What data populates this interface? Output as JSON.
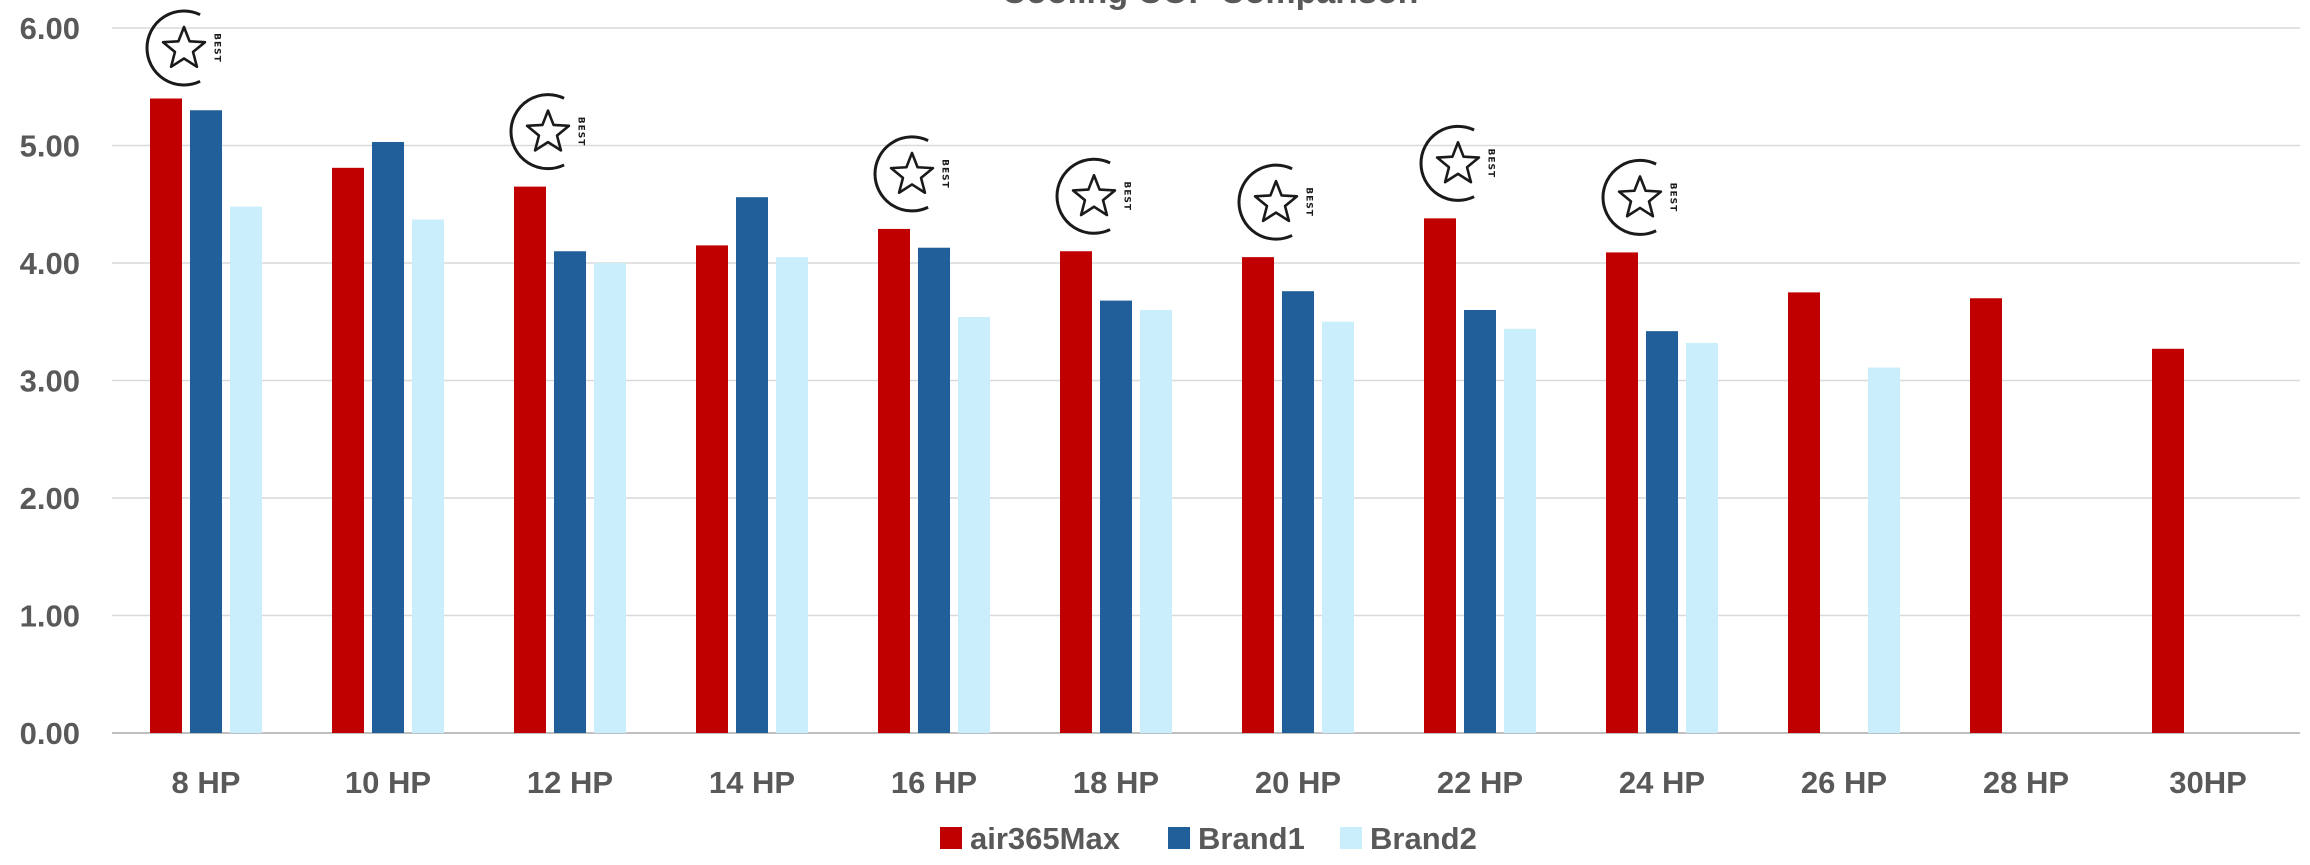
{
  "chart_data": {
    "type": "bar",
    "title": "Cooling COP Comparison",
    "xlabel": "",
    "ylabel": "",
    "ylim": [
      0,
      6
    ],
    "ytick_values": [
      0,
      1,
      2,
      3,
      4,
      5,
      6
    ],
    "ytick_labels": [
      "0.00",
      "1.00",
      "2.00",
      "3.00",
      "4.00",
      "5.00",
      "6.00"
    ],
    "categories": [
      "8 HP",
      "10 HP",
      "12 HP",
      "14 HP",
      "16 HP",
      "18 HP",
      "20 HP",
      "22 HP",
      "24 HP",
      "26 HP",
      "28 HP",
      "30HP"
    ],
    "series": [
      {
        "name": "air365Max",
        "color": "#c00000",
        "values": [
          5.4,
          4.81,
          4.65,
          4.15,
          4.29,
          4.1,
          4.05,
          4.38,
          4.09,
          3.75,
          3.7,
          3.27
        ]
      },
      {
        "name": "Brand1",
        "color": "#215f9a",
        "values": [
          5.3,
          5.03,
          4.1,
          4.56,
          4.13,
          3.68,
          3.76,
          3.6,
          3.42,
          null,
          null,
          null
        ]
      },
      {
        "name": "Brand2",
        "color": "#caeefb",
        "values": [
          4.48,
          4.37,
          4.0,
          4.05,
          3.54,
          3.6,
          3.5,
          3.44,
          3.32,
          3.11,
          null,
          null
        ]
      }
    ],
    "best_badges": {
      "icon": "star-badge-icon",
      "text": "BEST",
      "categories": [
        "8 HP",
        "12 HP",
        "16 HP",
        "18 HP",
        "20 HP",
        "22 HP",
        "24 HP"
      ]
    },
    "grid": true,
    "legend_position": "bottom"
  }
}
